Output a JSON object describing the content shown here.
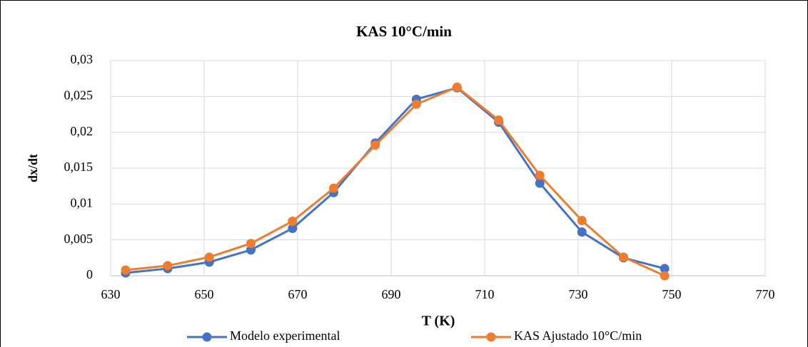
{
  "chart_data": {
    "type": "line",
    "title": "KAS 10°C/min",
    "x_label": "T (K)",
    "y_label": "dx/dt",
    "x": [
      633.2,
      642.2,
      651.1,
      660,
      668.9,
      677.7,
      686.6,
      695.4,
      704.1,
      713,
      721.8,
      730.8,
      739.7,
      748.5
    ],
    "series": [
      {
        "name": "Modelo experimental",
        "color": "#4472c4",
        "values": [
          0.0004,
          0.001,
          0.0019,
          0.0036,
          0.0066,
          0.0116,
          0.0185,
          0.0246,
          0.0262,
          0.0214,
          0.0129,
          0.0061,
          0.0025,
          0.001
        ]
      },
      {
        "name": "KAS Ajustado 10°C/min",
        "color": "#ed7d31",
        "values": [
          0.0008,
          0.0014,
          0.0026,
          0.0045,
          0.0076,
          0.0122,
          0.0182,
          0.0239,
          0.0263,
          0.0217,
          0.014,
          0.0077,
          0.0026,
          0
        ]
      }
    ],
    "xlim": [
      630,
      770
    ],
    "xticks": [
      630,
      650,
      670,
      690,
      710,
      730,
      750,
      770
    ],
    "ylim": [
      0,
      0.03
    ],
    "yticks": [
      0,
      {
        "value": 0.005,
        "label": "0,005"
      },
      {
        "value": 0.01,
        "label": "0,01"
      },
      {
        "value": 0.015,
        "label": "0,015"
      },
      {
        "value": 0.02,
        "label": "0,02"
      },
      {
        "value": 0.025,
        "label": "0,025"
      },
      {
        "value": 0.03,
        "label": "0,03"
      }
    ],
    "grid": true,
    "legend": "bottom"
  }
}
